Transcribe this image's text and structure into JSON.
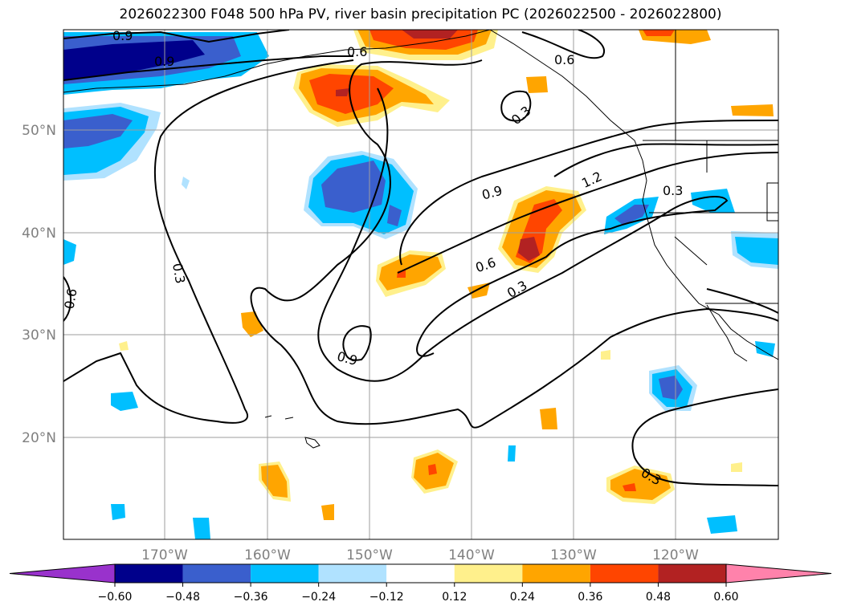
{
  "title": "2026022300 F048 500 hPa PV, river basin precipitation PC (2026022500 - 2026022800)",
  "map": {
    "lat_labels": [
      "50°N",
      "40°N",
      "30°N",
      "20°N"
    ],
    "lon_labels": [
      "170°W",
      "160°W",
      "150°W",
      "140°W",
      "130°W",
      "120°W"
    ],
    "contour_labels": [
      "0.9",
      "0.9",
      "0.6",
      "0.6",
      "0.3",
      "1.2",
      "0.3",
      "0.9",
      "0.6",
      "0.3",
      "0.3",
      "0.6",
      "0.9",
      "0.3"
    ]
  },
  "colorbar": {
    "ticks": [
      "−0.60",
      "−0.48",
      "−0.36",
      "−0.24",
      "−0.12",
      "0.12",
      "0.24",
      "0.36",
      "0.48",
      "0.60"
    ],
    "colors": [
      "#9932cc",
      "#00008b",
      "#3a5fcd",
      "#00bfff",
      "#b0e2ff",
      "#ffffff",
      "#fff08c",
      "#ffa500",
      "#ff4500",
      "#b22222",
      "#ff82ab"
    ]
  },
  "chart_data": {
    "type": "heatmap",
    "title": "2026022300 F048 500 hPa PV, river basin precipitation PC (2026022500 - 2026022800)",
    "lat_range": [
      10,
      60
    ],
    "lon_range": [
      -180,
      -110
    ],
    "contour_levels": [
      0.3,
      0.6,
      0.9,
      1.2
    ],
    "colorbar_levels": [
      -0.6,
      -0.48,
      -0.36,
      -0.24,
      -0.12,
      0.12,
      0.24,
      0.36,
      0.48,
      0.6
    ],
    "colorbar_extend": "both"
  }
}
